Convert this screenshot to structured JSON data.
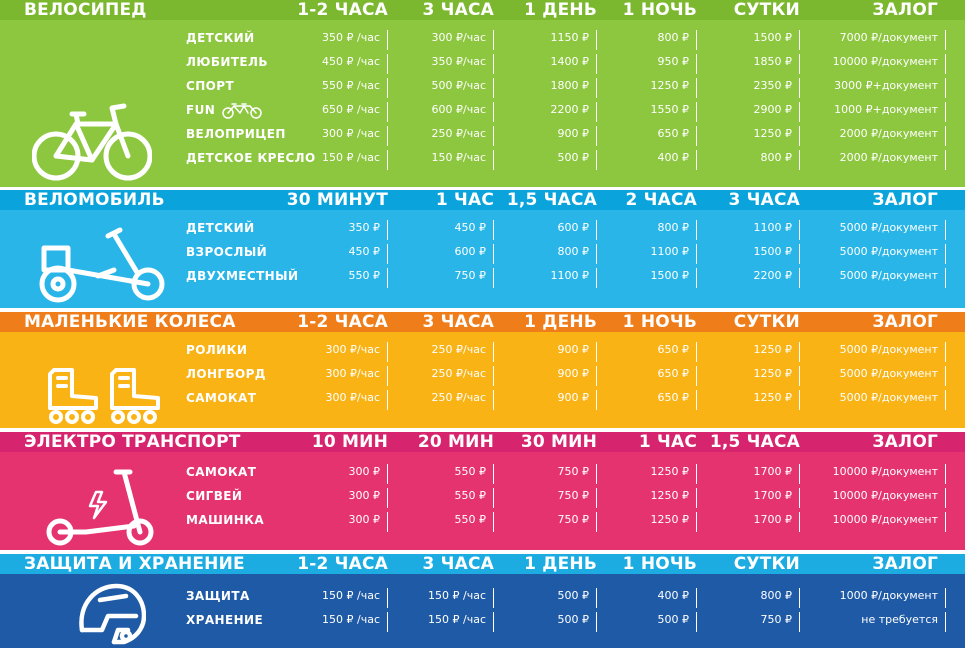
{
  "colors": {
    "green_header": "#7cb82f",
    "green_body": "#8dc63f",
    "blue_header": "#0aa3db",
    "blue_body": "#29b5e8",
    "orange_header": "#ef7d1a",
    "orange_body": "#f9b315",
    "pink_header": "#d6246e",
    "pink_body": "#e5336f",
    "navy_header": "#1cace2",
    "navy_body": "#1f5aa6"
  },
  "sections": [
    {
      "title": "ВЕЛОСИПЕД",
      "icon": "bicycle-icon",
      "columns": [
        "1-2 ЧАСА",
        "3 ЧАСА",
        "1 ДЕНЬ",
        "1 НОЧЬ",
        "СУТКИ",
        "ЗАЛОГ"
      ],
      "rows": [
        {
          "label": "ДЕТСКИЙ",
          "values": [
            "350 ₽ /час",
            "300 ₽/час",
            "1150 ₽",
            "800 ₽",
            "1500 ₽",
            "7000 ₽/документ"
          ]
        },
        {
          "label": "ЛЮБИТЕЛЬ",
          "values": [
            "450 ₽ /час",
            "350 ₽/час",
            "1400 ₽",
            "950 ₽",
            "1850 ₽",
            "10000 ₽/документ"
          ]
        },
        {
          "label": "СПОРТ",
          "values": [
            "550 ₽ /час",
            "500 ₽/час",
            "1800 ₽",
            "1250 ₽",
            "2350 ₽",
            "3000 ₽+документ"
          ]
        },
        {
          "label": "FUN",
          "values": [
            "650 ₽ /час",
            "600 ₽/час",
            "2200 ₽",
            "1550 ₽",
            "2900 ₽",
            "1000 ₽+документ"
          ]
        },
        {
          "label": "ВЕЛОПРИЦЕП",
          "values": [
            "300 ₽ /час",
            "250 ₽/час",
            "900 ₽",
            "650 ₽",
            "1250 ₽",
            "2000 ₽/документ"
          ]
        },
        {
          "label": "ДЕТСКОЕ КРЕСЛО",
          "values": [
            "150 ₽ /час",
            "150 ₽/час",
            "500 ₽",
            "400 ₽",
            "800 ₽",
            "2000 ₽/документ"
          ]
        }
      ]
    },
    {
      "title": "ВЕЛОМОБИЛЬ",
      "icon": "pedal-car-icon",
      "columns": [
        "30 МИНУТ",
        "1 ЧАС",
        "1,5 ЧАСА",
        "2 ЧАСА",
        "3 ЧАСА",
        "ЗАЛОГ"
      ],
      "rows": [
        {
          "label": "ДЕТСКИЙ",
          "values": [
            "350 ₽",
            "450 ₽",
            "600 ₽",
            "800 ₽",
            "1100 ₽",
            "5000 ₽/документ"
          ]
        },
        {
          "label": "ВЗРОСЛЫЙ",
          "values": [
            "450 ₽",
            "600 ₽",
            "800 ₽",
            "1100 ₽",
            "1500 ₽",
            "5000 ₽/документ"
          ]
        },
        {
          "label": "ДВУХМЕСТНЫЙ",
          "values": [
            "550 ₽",
            "750 ₽",
            "1100 ₽",
            "1500 ₽",
            "2200 ₽",
            "5000 ₽/документ"
          ]
        }
      ]
    },
    {
      "title": "МАЛЕНЬКИЕ КОЛЕСА",
      "icon": "rollerblades-icon",
      "columns": [
        "1-2 ЧАСА",
        "3 ЧАСА",
        "1 ДЕНЬ",
        "1 НОЧЬ",
        "СУТКИ",
        "ЗАЛОГ"
      ],
      "rows": [
        {
          "label": "РОЛИКИ",
          "values": [
            "300 ₽/час",
            "250 ₽/час",
            "900 ₽",
            "650 ₽",
            "1250 ₽",
            "5000 ₽/документ"
          ]
        },
        {
          "label": "ЛОНГБОРД",
          "values": [
            "300 ₽/час",
            "250 ₽/час",
            "900 ₽",
            "650 ₽",
            "1250 ₽",
            "5000 ₽/документ"
          ]
        },
        {
          "label": "САМОКАТ",
          "values": [
            "300 ₽/час",
            "250 ₽/час",
            "900 ₽",
            "650 ₽",
            "1250 ₽",
            "5000 ₽/документ"
          ]
        }
      ]
    },
    {
      "title": "ЭЛЕКТРО ТРАНСПОРТ",
      "icon": "electric-scooter-icon",
      "columns": [
        "10 МИН",
        "20 МИН",
        "30 МИН",
        "1 ЧАС",
        "1,5 ЧАСА",
        "ЗАЛОГ"
      ],
      "rows": [
        {
          "label": "САМОКАТ",
          "values": [
            "300 ₽",
            "550 ₽",
            "750 ₽",
            "1250 ₽",
            "1700 ₽",
            "10000 ₽/документ"
          ]
        },
        {
          "label": "СИГВЕЙ",
          "values": [
            "300 ₽",
            "550 ₽",
            "750 ₽",
            "1250 ₽",
            "1700 ₽",
            "10000 ₽/документ"
          ]
        },
        {
          "label": "МАШИНКА",
          "values": [
            "300 ₽",
            "550 ₽",
            "750 ₽",
            "1250 ₽",
            "1700 ₽",
            "10000 ₽/документ"
          ]
        }
      ]
    },
    {
      "title": "ЗАЩИТА И ХРАНЕНИЕ",
      "icon": "helmet-icon",
      "columns": [
        "1-2 ЧАСА",
        "3 ЧАСА",
        "1 ДЕНЬ",
        "1 НОЧЬ",
        "СУТКИ",
        "ЗАЛОГ"
      ],
      "rows": [
        {
          "label": "ЗАЩИТА",
          "values": [
            "150 ₽ /час",
            "150 ₽ /час",
            "500 ₽",
            "400 ₽",
            "800 ₽",
            "1000 ₽/документ"
          ]
        },
        {
          "label": "ХРАНЕНИЕ",
          "values": [
            "150 ₽ /час",
            "150 ₽ /час",
            "500 ₽",
            "500 ₽",
            "750 ₽",
            "не требуется"
          ]
        }
      ]
    }
  ]
}
